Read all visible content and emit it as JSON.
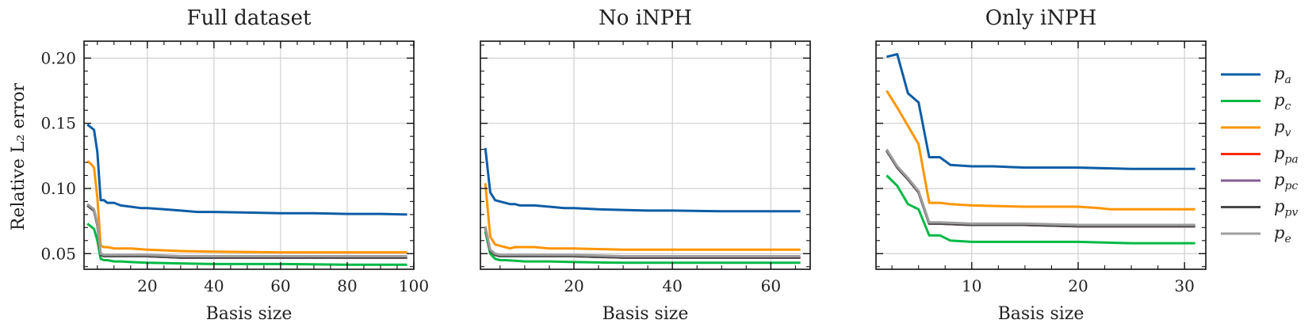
{
  "figure": {
    "ylabel": "Relative L₂ error"
  },
  "colors": {
    "p_a": "#0C5DA5",
    "p_c": "#00B945",
    "p_v": "#FF9500",
    "p_pa": "#FF2C00",
    "p_pc": "#845B97",
    "p_pv": "#474747",
    "p_e": "#9E9E9E"
  },
  "legend": [
    {
      "key": "p_a",
      "base": "p",
      "sub": "a"
    },
    {
      "key": "p_c",
      "base": "p",
      "sub": "c"
    },
    {
      "key": "p_v",
      "base": "p",
      "sub": "v"
    },
    {
      "key": "p_pa",
      "base": "p",
      "sub": "pa"
    },
    {
      "key": "p_pc",
      "base": "p",
      "sub": "pc"
    },
    {
      "key": "p_pv",
      "base": "p",
      "sub": "pv"
    },
    {
      "key": "p_e",
      "base": "p",
      "sub": "e"
    }
  ],
  "chart_data": [
    {
      "type": "line",
      "title": "Full dataset",
      "xlabel": "Basis size",
      "ylabel": "Relative L₂ error",
      "xlim": [
        1,
        100
      ],
      "ylim": [
        0.038,
        0.213
      ],
      "xticks": [
        20,
        40,
        60,
        80,
        100
      ],
      "yticks": [
        0.05,
        0.1,
        0.15,
        0.2
      ],
      "grid": true,
      "series": [
        {
          "name": "p_a",
          "x": [
            2,
            3,
            4,
            5,
            6,
            7,
            8,
            9,
            10,
            12,
            15,
            18,
            20,
            25,
            30,
            35,
            40,
            50,
            60,
            70,
            80,
            90,
            98
          ],
          "y": [
            0.149,
            0.147,
            0.145,
            0.128,
            0.091,
            0.091,
            0.089,
            0.089,
            0.089,
            0.087,
            0.086,
            0.085,
            0.085,
            0.084,
            0.083,
            0.082,
            0.082,
            0.0815,
            0.081,
            0.081,
            0.0805,
            0.0805,
            0.08
          ]
        },
        {
          "name": "p_c",
          "x": [
            2,
            3,
            4,
            5,
            6,
            7,
            8,
            10,
            12,
            15,
            20,
            30,
            40,
            60,
            80,
            98
          ],
          "y": [
            0.073,
            0.071,
            0.069,
            0.06,
            0.046,
            0.045,
            0.045,
            0.044,
            0.044,
            0.0435,
            0.043,
            0.0425,
            0.042,
            0.042,
            0.0415,
            0.0415
          ]
        },
        {
          "name": "p_v",
          "x": [
            2,
            3,
            4,
            5,
            6,
            7,
            8,
            10,
            12,
            15,
            20,
            30,
            40,
            60,
            80,
            98
          ],
          "y": [
            0.121,
            0.119,
            0.116,
            0.093,
            0.056,
            0.055,
            0.055,
            0.054,
            0.054,
            0.054,
            0.053,
            0.052,
            0.0515,
            0.051,
            0.051,
            0.051
          ]
        },
        {
          "name": "p_pa",
          "x": [
            2,
            3,
            4,
            5,
            6,
            7,
            8,
            10,
            15,
            20,
            30,
            40,
            60,
            80,
            98
          ],
          "y": [
            0.087,
            0.085,
            0.083,
            0.072,
            0.049,
            0.048,
            0.048,
            0.048,
            0.048,
            0.048,
            0.047,
            0.047,
            0.047,
            0.047,
            0.047
          ]
        },
        {
          "name": "p_pc",
          "x": [
            2,
            3,
            4,
            5,
            6,
            7,
            8,
            10,
            15,
            20,
            30,
            40,
            60,
            80,
            98
          ],
          "y": [
            0.087,
            0.085,
            0.083,
            0.072,
            0.049,
            0.048,
            0.048,
            0.048,
            0.048,
            0.048,
            0.047,
            0.047,
            0.047,
            0.047,
            0.047
          ]
        },
        {
          "name": "p_pv",
          "x": [
            2,
            3,
            4,
            5,
            6,
            7,
            8,
            10,
            15,
            20,
            30,
            40,
            60,
            80,
            98
          ],
          "y": [
            0.087,
            0.085,
            0.083,
            0.072,
            0.049,
            0.048,
            0.048,
            0.048,
            0.048,
            0.048,
            0.047,
            0.047,
            0.047,
            0.047,
            0.047
          ]
        },
        {
          "name": "p_e",
          "x": [
            2,
            3,
            4,
            5,
            6,
            7,
            8,
            10,
            15,
            20,
            30,
            40,
            60,
            80,
            98
          ],
          "y": [
            0.088,
            0.086,
            0.084,
            0.073,
            0.05,
            0.049,
            0.049,
            0.049,
            0.049,
            0.049,
            0.048,
            0.048,
            0.048,
            0.048,
            0.048
          ]
        }
      ]
    },
    {
      "type": "line",
      "title": "No iNPH",
      "xlabel": "Basis size",
      "xlim": [
        1,
        68
      ],
      "ylim": [
        0.038,
        0.213
      ],
      "xticks": [
        20,
        40,
        60
      ],
      "yticks": [
        0.05,
        0.1,
        0.15,
        0.2
      ],
      "grid": true,
      "series": [
        {
          "name": "p_a",
          "x": [
            2,
            3,
            4,
            5,
            6,
            7,
            8,
            9,
            10,
            12,
            15,
            18,
            20,
            25,
            30,
            35,
            40,
            50,
            60,
            66
          ],
          "y": [
            0.131,
            0.097,
            0.091,
            0.09,
            0.089,
            0.088,
            0.088,
            0.087,
            0.087,
            0.087,
            0.086,
            0.085,
            0.085,
            0.084,
            0.0835,
            0.083,
            0.083,
            0.0825,
            0.0825,
            0.0825
          ]
        },
        {
          "name": "p_c",
          "x": [
            2,
            3,
            4,
            5,
            6,
            8,
            10,
            12,
            15,
            20,
            30,
            40,
            50,
            60,
            66
          ],
          "y": [
            0.067,
            0.05,
            0.046,
            0.045,
            0.045,
            0.0445,
            0.044,
            0.044,
            0.044,
            0.0435,
            0.043,
            0.043,
            0.043,
            0.043,
            0.043
          ]
        },
        {
          "name": "p_v",
          "x": [
            2,
            3,
            4,
            5,
            6,
            7,
            8,
            10,
            12,
            15,
            20,
            30,
            40,
            50,
            60,
            66
          ],
          "y": [
            0.104,
            0.063,
            0.057,
            0.056,
            0.055,
            0.054,
            0.055,
            0.055,
            0.055,
            0.054,
            0.054,
            0.053,
            0.053,
            0.053,
            0.053,
            0.053
          ]
        },
        {
          "name": "p_pa",
          "x": [
            2,
            3,
            4,
            5,
            6,
            8,
            10,
            15,
            20,
            30,
            40,
            50,
            60,
            66
          ],
          "y": [
            0.07,
            0.052,
            0.049,
            0.048,
            0.048,
            0.048,
            0.048,
            0.048,
            0.048,
            0.047,
            0.047,
            0.047,
            0.047,
            0.047
          ]
        },
        {
          "name": "p_pc",
          "x": [
            2,
            3,
            4,
            5,
            6,
            8,
            10,
            15,
            20,
            30,
            40,
            50,
            60,
            66
          ],
          "y": [
            0.07,
            0.052,
            0.049,
            0.048,
            0.048,
            0.048,
            0.048,
            0.048,
            0.048,
            0.047,
            0.047,
            0.047,
            0.047,
            0.047
          ]
        },
        {
          "name": "p_pv",
          "x": [
            2,
            3,
            4,
            5,
            6,
            8,
            10,
            15,
            20,
            30,
            40,
            50,
            60,
            66
          ],
          "y": [
            0.07,
            0.052,
            0.049,
            0.048,
            0.048,
            0.048,
            0.048,
            0.048,
            0.048,
            0.047,
            0.047,
            0.047,
            0.047,
            0.047
          ]
        },
        {
          "name": "p_e",
          "x": [
            2,
            3,
            4,
            5,
            6,
            8,
            10,
            15,
            20,
            30,
            40,
            50,
            60,
            66
          ],
          "y": [
            0.071,
            0.053,
            0.05,
            0.049,
            0.049,
            0.049,
            0.049,
            0.049,
            0.049,
            0.048,
            0.048,
            0.048,
            0.048,
            0.048
          ]
        }
      ]
    },
    {
      "type": "line",
      "title": "Only iNPH",
      "xlabel": "Basis size",
      "xlim": [
        1,
        32
      ],
      "ylim": [
        0.038,
        0.213
      ],
      "xticks": [
        10,
        20,
        30
      ],
      "yticks": [
        0.05,
        0.1,
        0.15,
        0.2
      ],
      "grid": true,
      "series": [
        {
          "name": "p_a",
          "x": [
            2,
            3,
            4,
            5,
            6,
            7,
            8,
            10,
            12,
            15,
            20,
            25,
            31
          ],
          "y": [
            0.201,
            0.203,
            0.173,
            0.166,
            0.124,
            0.124,
            0.118,
            0.117,
            0.117,
            0.116,
            0.116,
            0.115,
            0.115
          ]
        },
        {
          "name": "p_c",
          "x": [
            2,
            3,
            4,
            5,
            6,
            7,
            8,
            10,
            15,
            20,
            25,
            31
          ],
          "y": [
            0.11,
            0.102,
            0.088,
            0.084,
            0.064,
            0.064,
            0.06,
            0.059,
            0.059,
            0.059,
            0.058,
            0.058
          ]
        },
        {
          "name": "p_v",
          "x": [
            2,
            3,
            4,
            5,
            6,
            7,
            8,
            10,
            15,
            20,
            22,
            23,
            25,
            31
          ],
          "y": [
            0.175,
            0.162,
            0.148,
            0.134,
            0.089,
            0.089,
            0.088,
            0.087,
            0.086,
            0.086,
            0.085,
            0.084,
            0.084,
            0.084
          ]
        },
        {
          "name": "p_pa",
          "x": [
            2,
            3,
            4,
            5,
            6,
            7,
            10,
            15,
            20,
            25,
            31
          ],
          "y": [
            0.129,
            0.116,
            0.107,
            0.097,
            0.073,
            0.073,
            0.072,
            0.072,
            0.071,
            0.071,
            0.071
          ]
        },
        {
          "name": "p_pc",
          "x": [
            2,
            3,
            4,
            5,
            6,
            7,
            10,
            15,
            20,
            25,
            31
          ],
          "y": [
            0.129,
            0.116,
            0.107,
            0.097,
            0.073,
            0.073,
            0.072,
            0.072,
            0.071,
            0.071,
            0.071
          ]
        },
        {
          "name": "p_pv",
          "x": [
            2,
            3,
            4,
            5,
            6,
            7,
            10,
            15,
            20,
            25,
            31
          ],
          "y": [
            0.129,
            0.116,
            0.107,
            0.097,
            0.073,
            0.073,
            0.072,
            0.072,
            0.071,
            0.071,
            0.071
          ]
        },
        {
          "name": "p_e",
          "x": [
            2,
            3,
            4,
            5,
            6,
            7,
            10,
            15,
            20,
            25,
            31
          ],
          "y": [
            0.13,
            0.117,
            0.108,
            0.098,
            0.074,
            0.074,
            0.073,
            0.073,
            0.072,
            0.072,
            0.072
          ]
        }
      ]
    }
  ]
}
